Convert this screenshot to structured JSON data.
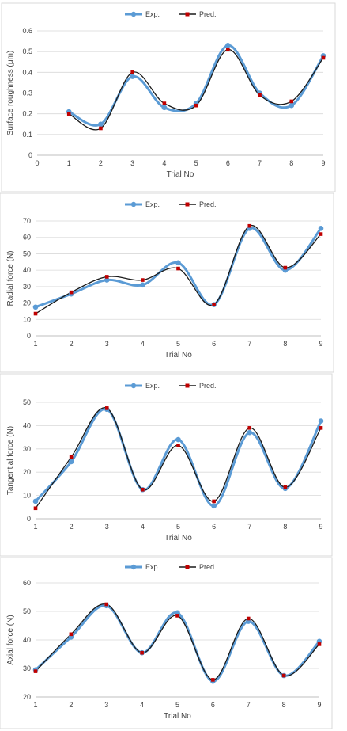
{
  "colors": {
    "exp": "#5b9bd5",
    "pred_marker": "#c00000",
    "pred_line": "#1a1a1a"
  },
  "legend": {
    "exp": "Exp.",
    "pred": "Pred."
  },
  "chart_data": [
    {
      "type": "line",
      "xlabel": "Trial No",
      "ylabel": "Surface roughness (μm)",
      "x": [
        1,
        2,
        3,
        4,
        5,
        6,
        7,
        8,
        9
      ],
      "xlim": [
        0,
        9
      ],
      "ylim": [
        0,
        0.6
      ],
      "yticks": [
        0,
        0.1,
        0.2,
        0.3,
        0.4,
        0.5,
        0.6
      ],
      "ytick_labels": [
        "0",
        "0.1",
        "0.2",
        "0.3",
        "0.4",
        "0.5",
        "0.6"
      ],
      "xticks": [
        0,
        1,
        2,
        3,
        4,
        5,
        6,
        7,
        8,
        9
      ],
      "grid": true,
      "legend_position": "top",
      "series": [
        {
          "name": "Exp.",
          "values": [
            0.21,
            0.15,
            0.38,
            0.23,
            0.25,
            0.53,
            0.3,
            0.24,
            0.48
          ]
        },
        {
          "name": "Pred.",
          "values": [
            0.2,
            0.13,
            0.4,
            0.25,
            0.24,
            0.51,
            0.29,
            0.26,
            0.47
          ]
        }
      ]
    },
    {
      "type": "line",
      "xlabel": "Trial No",
      "ylabel": "Radial force (N)",
      "x": [
        1,
        2,
        3,
        4,
        5,
        6,
        7,
        8,
        9
      ],
      "xlim": [
        1,
        9
      ],
      "ylim": [
        0,
        70
      ],
      "yticks": [
        0,
        10,
        20,
        30,
        40,
        50,
        60,
        70
      ],
      "ytick_labels": [
        "0",
        "10",
        "20",
        "30",
        "40",
        "50",
        "60",
        "70"
      ],
      "xticks": [
        1,
        2,
        3,
        4,
        5,
        6,
        7,
        8,
        9
      ],
      "grid": true,
      "legend_position": "top",
      "series": [
        {
          "name": "Exp.",
          "values": [
            17.5,
            25.5,
            34,
            31,
            44.5,
            19,
            65.5,
            40,
            65.5
          ]
        },
        {
          "name": "Pred.",
          "values": [
            13.5,
            26.5,
            36,
            34,
            41,
            19,
            67,
            41.5,
            62
          ]
        }
      ]
    },
    {
      "type": "line",
      "xlabel": "Trial No",
      "ylabel": "Tangential force (N)",
      "x": [
        1,
        2,
        3,
        4,
        5,
        6,
        7,
        8,
        9
      ],
      "xlim": [
        1,
        9
      ],
      "ylim": [
        0,
        50
      ],
      "yticks": [
        0,
        10,
        20,
        30,
        40,
        50
      ],
      "ytick_labels": [
        "0",
        "10",
        "20",
        "30",
        "40",
        "50"
      ],
      "xticks": [
        1,
        2,
        3,
        4,
        5,
        6,
        7,
        8,
        9
      ],
      "grid": true,
      "legend_position": "top",
      "series": [
        {
          "name": "Exp.",
          "values": [
            7.5,
            24.5,
            47,
            12.5,
            34,
            5.5,
            37,
            13,
            42
          ]
        },
        {
          "name": "Pred.",
          "values": [
            4.5,
            26.5,
            47.5,
            12.5,
            31.5,
            7.5,
            39,
            13.5,
            39
          ]
        }
      ]
    },
    {
      "type": "line",
      "xlabel": "Trial No",
      "ylabel": "Axial force (N)",
      "x": [
        1,
        2,
        3,
        4,
        5,
        6,
        7,
        8,
        9
      ],
      "xlim": [
        1,
        9
      ],
      "ylim": [
        20,
        60
      ],
      "yticks": [
        20,
        30,
        40,
        50,
        60
      ],
      "ytick_labels": [
        "20",
        "30",
        "40",
        "50",
        "60"
      ],
      "xticks": [
        1,
        2,
        3,
        4,
        5,
        6,
        7,
        8,
        9
      ],
      "grid": true,
      "legend_position": "top",
      "series": [
        {
          "name": "Exp.",
          "values": [
            29.5,
            41,
            52,
            35.5,
            49.5,
            25.5,
            46.5,
            27.5,
            39.5
          ]
        },
        {
          "name": "Pred.",
          "values": [
            29,
            42,
            52.5,
            35.5,
            48.5,
            26,
            47.5,
            27.5,
            38.5
          ]
        }
      ]
    }
  ]
}
